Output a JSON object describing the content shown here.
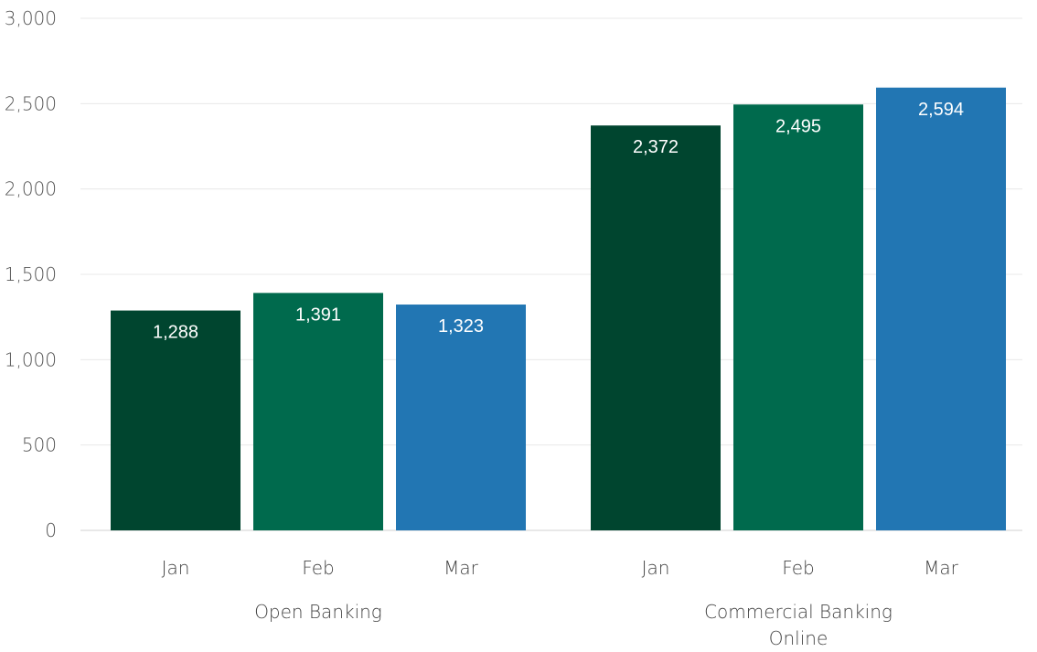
{
  "chart_data": {
    "type": "bar",
    "ylim": [
      0,
      3000
    ],
    "y_ticks": [
      "0",
      "500",
      "1,000",
      "1,500",
      "2,000",
      "2,500",
      "3,000"
    ],
    "y_tick_values": [
      0,
      500,
      1000,
      1500,
      2000,
      2500,
      3000
    ],
    "grid": true,
    "groups": [
      {
        "name": "Open Banking",
        "name_lines": [
          "Open Banking"
        ],
        "bars": [
          {
            "category": "Jan",
            "value": 1288,
            "label": "1,288",
            "color": "#00452f"
          },
          {
            "category": "Feb",
            "value": 1391,
            "label": "1,391",
            "color": "#006a4d"
          },
          {
            "category": "Mar",
            "value": 1323,
            "label": "1,323",
            "color": "#2276b3"
          }
        ]
      },
      {
        "name": "Commercial Banking Online",
        "name_lines": [
          "Commercial Banking",
          "Online"
        ],
        "bars": [
          {
            "category": "Jan",
            "value": 2372,
            "label": "2,372",
            "color": "#00452f"
          },
          {
            "category": "Feb",
            "value": 2495,
            "label": "2,495",
            "color": "#006a4d"
          },
          {
            "category": "Mar",
            "value": 2594,
            "label": "2,594",
            "color": "#2276b3"
          }
        ]
      }
    ]
  }
}
